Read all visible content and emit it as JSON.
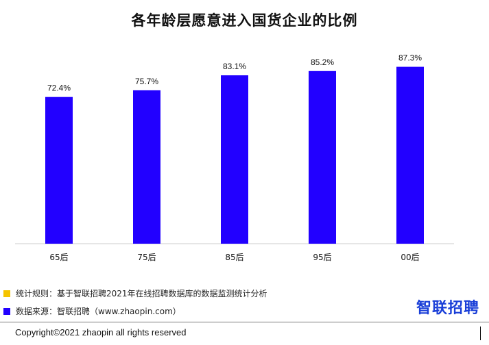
{
  "chart_data": {
    "type": "bar",
    "title": "各年龄层愿意进入国货企业的比例",
    "categories": [
      "65后",
      "75后",
      "85后",
      "95后",
      "00后"
    ],
    "values": [
      72.4,
      75.7,
      83.1,
      85.2,
      87.3
    ],
    "data_labels": [
      "72.4%",
      "75.7%",
      "83.1%",
      "85.2%",
      "87.3%"
    ],
    "ylim": [
      0,
      100
    ],
    "grid": false,
    "legend": "none",
    "bar_color": "#2200ff"
  },
  "notes": {
    "rule": "统计规则：基于智联招聘2021年在线招聘数据库的数据监测统计分析",
    "source": "数据来源：智联招聘（www.zhaopin.com）",
    "rule_color": "#f5c400",
    "source_color": "#2200ff"
  },
  "brand": {
    "logo_text": "智联招聘",
    "logo_color": "#1a3fd8"
  },
  "footer": {
    "copyright": "Copyright©2021 zhaopin  all rights reserved"
  }
}
